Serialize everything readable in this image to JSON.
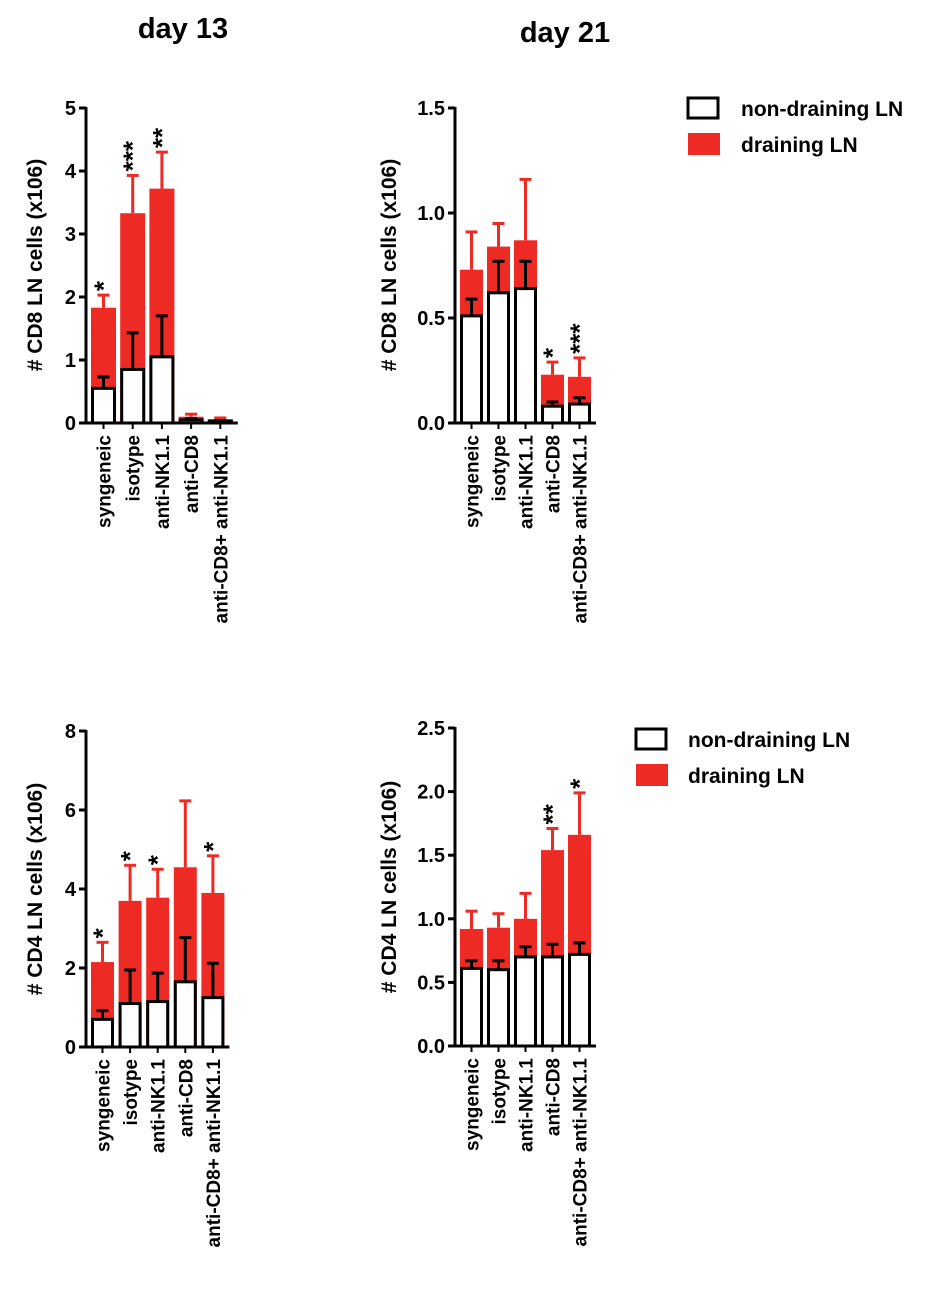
{
  "headers": {
    "day13": "day 13",
    "day21": "day 21"
  },
  "legend": {
    "non_draining": "non-draining LN",
    "draining": "draining LN"
  },
  "colors": {
    "draining": "#ee2a24",
    "non_draining": "#ffffff",
    "axis": "#000000"
  },
  "chart_data": [
    {
      "id": "cd8-day13",
      "type": "bar",
      "stacked": true,
      "title": "day 13",
      "ylabel": "# CD8 LN cells (x106)",
      "ylim": [
        0,
        5
      ],
      "yticks": [
        0,
        1,
        2,
        3,
        4,
        5
      ],
      "ytick_labels": [
        "0",
        "1",
        "2",
        "3",
        "4",
        "5"
      ],
      "categories": [
        "syngeneic",
        "isotype",
        "anti-NK1.1",
        "anti-CD8",
        "anti-CD8+ anti-NK1.1"
      ],
      "series": [
        {
          "name": "non-draining LN",
          "values": [
            0.55,
            0.85,
            1.05,
            0.05,
            0.03
          ],
          "errors": [
            0.18,
            0.58,
            0.65,
            0.02,
            0.01
          ]
        },
        {
          "name": "draining LN",
          "values": [
            1.83,
            3.33,
            3.72,
            0.1,
            0.06
          ],
          "errors": [
            0.2,
            0.6,
            0.58,
            0.04,
            0.02
          ]
        }
      ],
      "annotations": [
        "*",
        "***",
        "**",
        "",
        ""
      ]
    },
    {
      "id": "cd8-day21",
      "type": "bar",
      "stacked": true,
      "title": "day 21",
      "ylabel": "# CD8 LN cells (x106)",
      "ylim": [
        0,
        1.5
      ],
      "yticks": [
        0,
        0.5,
        1.0,
        1.5
      ],
      "ytick_labels": [
        "0.0",
        "0.5",
        "1.0",
        "1.5"
      ],
      "categories": [
        "syngeneic",
        "isotype",
        "anti-NK1.1",
        "anti-CD8",
        "anti-CD8+ anti-NK1.1"
      ],
      "series": [
        {
          "name": "non-draining LN",
          "values": [
            0.51,
            0.62,
            0.64,
            0.08,
            0.09
          ],
          "errors": [
            0.08,
            0.15,
            0.13,
            0.02,
            0.03
          ]
        },
        {
          "name": "draining LN",
          "values": [
            0.73,
            0.84,
            0.87,
            0.23,
            0.22
          ],
          "errors": [
            0.18,
            0.11,
            0.29,
            0.06,
            0.09
          ]
        }
      ],
      "annotations": [
        "",
        "",
        "",
        "*",
        "***"
      ]
    },
    {
      "id": "cd4-day13",
      "type": "bar",
      "stacked": true,
      "ylabel": "# CD4 LN cells (x106)",
      "ylim": [
        0,
        8
      ],
      "yticks": [
        0,
        2,
        4,
        6,
        8
      ],
      "ytick_labels": [
        "0",
        "2",
        "4",
        "6",
        "8"
      ],
      "categories": [
        "syngeneic",
        "isotype",
        "anti-NK1.1",
        "anti-CD8",
        "anti-CD8+ anti-NK1.1"
      ],
      "series": [
        {
          "name": "non-draining LN",
          "values": [
            0.7,
            1.1,
            1.15,
            1.65,
            1.25
          ],
          "errors": [
            0.22,
            0.85,
            0.72,
            1.12,
            0.87
          ]
        },
        {
          "name": "draining LN",
          "values": [
            2.15,
            3.7,
            3.78,
            4.55,
            3.9
          ],
          "errors": [
            0.5,
            0.9,
            0.72,
            1.68,
            0.94
          ]
        }
      ],
      "annotations": [
        "*",
        "*",
        "*",
        "",
        "*"
      ]
    },
    {
      "id": "cd4-day21",
      "type": "bar",
      "stacked": true,
      "ylabel": "# CD4 LN cells (x106)",
      "ylim": [
        0,
        2.5
      ],
      "yticks": [
        0,
        0.5,
        1.0,
        1.5,
        2.0,
        2.5
      ],
      "ytick_labels": [
        "0.0",
        "0.5",
        "1.0",
        "1.5",
        "2.0",
        "2.5"
      ],
      "categories": [
        "syngeneic",
        "isotype",
        "anti-NK1.1",
        "anti-CD8",
        "anti-CD8+ anti-NK1.1"
      ],
      "series": [
        {
          "name": "non-draining LN",
          "values": [
            0.61,
            0.6,
            0.7,
            0.7,
            0.72
          ],
          "errors": [
            0.06,
            0.07,
            0.08,
            0.1,
            0.09
          ]
        },
        {
          "name": "draining LN",
          "values": [
            0.92,
            0.93,
            1.0,
            1.54,
            1.66
          ],
          "errors": [
            0.14,
            0.11,
            0.2,
            0.17,
            0.33
          ]
        }
      ],
      "annotations": [
        "",
        "",
        "",
        "**",
        "*"
      ]
    }
  ]
}
